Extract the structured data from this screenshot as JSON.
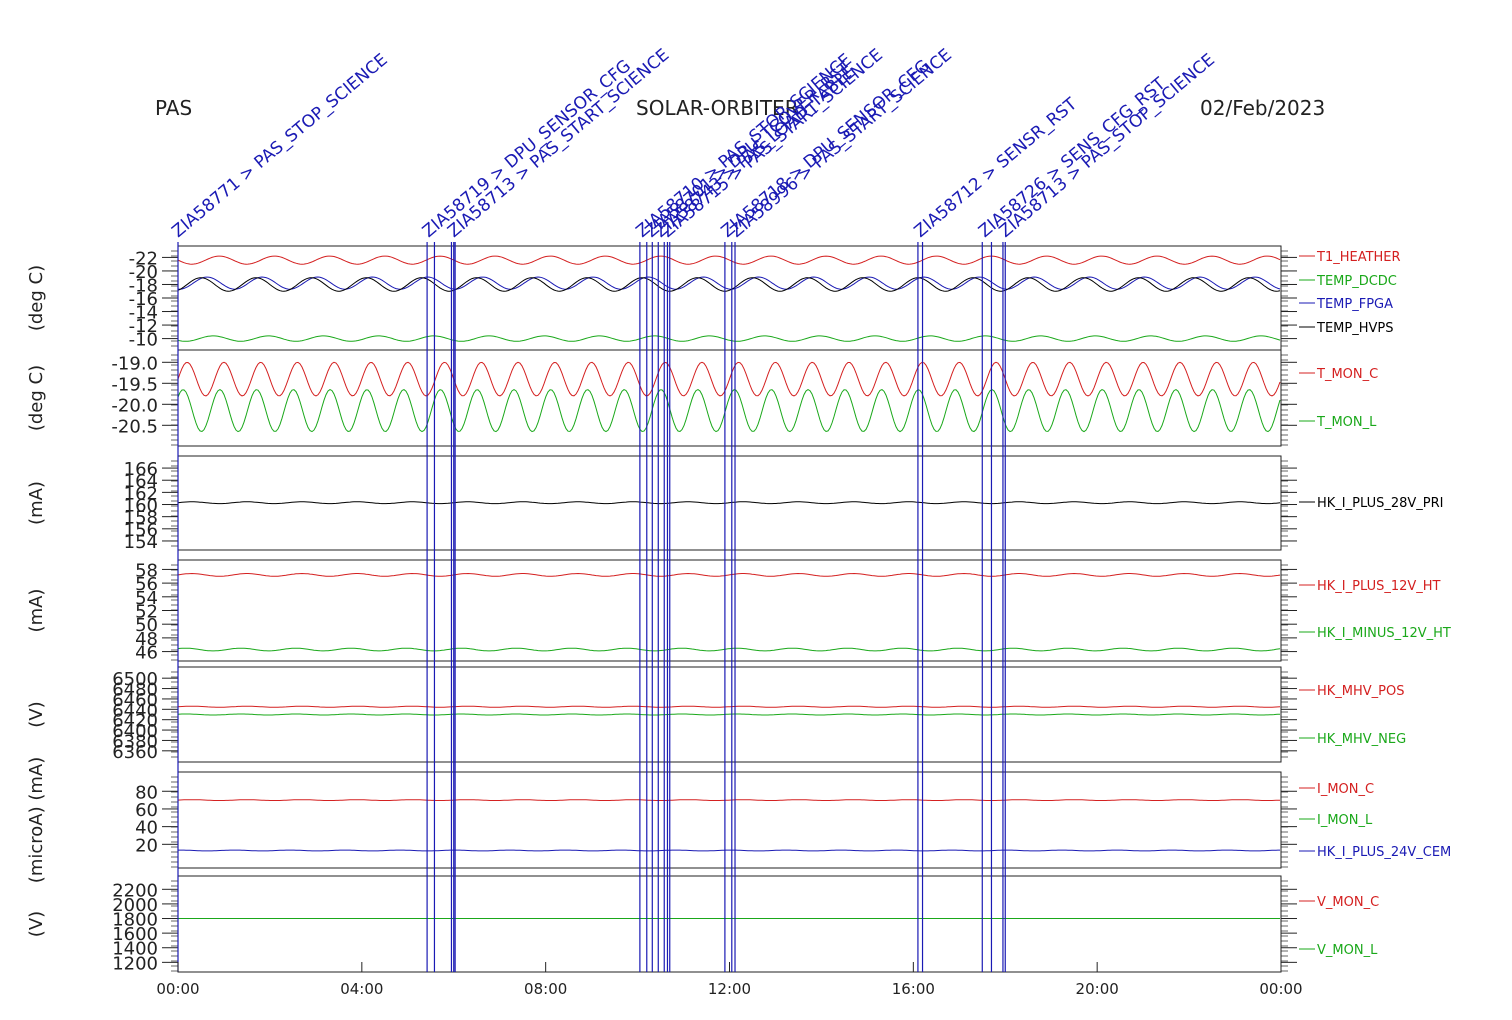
{
  "header": {
    "instrument": "PAS",
    "mission": "SOLAR-ORBITER",
    "date": "02/Feb/2023"
  },
  "colors": {
    "red": "#d42020",
    "green": "#1aa81a",
    "blue": "#1a1ab4",
    "black": "#000000",
    "frame": "#222222"
  },
  "x_tick_labels": [
    "00:00",
    "04:00",
    "08:00",
    "12:00",
    "16:00",
    "20:00",
    "00:00"
  ],
  "events": {
    "hours": [
      0.0,
      5.42,
      5.58,
      5.95,
      6.0,
      6.03,
      10.05,
      10.2,
      10.32,
      10.45,
      10.58,
      10.65,
      10.7,
      11.9,
      12.05,
      12.12,
      16.1,
      16.2,
      17.5,
      17.7,
      17.95,
      18.0
    ],
    "labels": [
      {
        "h": 0.0,
        "text": "ZIA58771 > PAS_STOP_SCIENCE"
      },
      {
        "h": 5.45,
        "text": "ZIA58719 > DPU_SENSOR_CFG"
      },
      {
        "h": 6.0,
        "text": "ZIA58713 > PAS_START_SCIENCE"
      },
      {
        "h": 10.1,
        "text": "ZIA58710 > PAS_STOP_SCIENCE"
      },
      {
        "h": 10.3,
        "text": "ZIA58701 > DPU_TCOVER_RST"
      },
      {
        "h": 10.5,
        "text": "ZIA58743 > PAS_LOAD_TABLE"
      },
      {
        "h": 10.65,
        "text": "ZIA58715 > PAS_START_SCIENCE"
      },
      {
        "h": 11.95,
        "text": "ZIA58718 > DPU_SENSOR_CFG"
      },
      {
        "h": 12.15,
        "text": "ZIA58996 > PAS_START_SCIENCE"
      },
      {
        "h": 16.15,
        "text": "ZIA58712 > SENSR_RST"
      },
      {
        "h": 17.55,
        "text": "ZIA58726 > SENS_CFG_RST"
      },
      {
        "h": 18.0,
        "text": "ZIA58713 > PAS_STOP_SCIENCE"
      }
    ]
  },
  "chart_data": [
    {
      "type": "line",
      "ylabel": "(deg C)",
      "ylim": [
        -22.8,
        -9.2
      ],
      "invert": true,
      "yticks": [
        -10,
        -12,
        -14,
        -16,
        -18,
        -20,
        -22
      ],
      "ytick_labels": [
        "-10",
        "-12",
        "-14",
        "-16",
        "-18",
        "-20",
        "-22"
      ],
      "series": [
        {
          "name": "T1_HEATHER",
          "color": "#d42020",
          "base": -21.6,
          "amp": 0.6
        },
        {
          "name": "TEMP_DCDC",
          "color": "#1aa81a",
          "base": -10.0,
          "amp": 0.4
        },
        {
          "name": "TEMP_FPGA",
          "color": "#1a1ab4",
          "base": -18.2,
          "amp": 0.9
        },
        {
          "name": "TEMP_HVPS",
          "color": "#000000",
          "base": -18.0,
          "amp": 1.0
        }
      ]
    },
    {
      "type": "line",
      "ylabel": "(deg C)",
      "ylim": [
        -20.85,
        -18.85
      ],
      "invert": false,
      "yticks": [
        -19.0,
        -19.5,
        -20.0,
        -20.5
      ],
      "ytick_labels": [
        "-19.0",
        "-19.5",
        "-20.0",
        "-20.5"
      ],
      "series": [
        {
          "name": "T_MON_C",
          "color": "#d42020",
          "base": -19.4,
          "amp": 0.4
        },
        {
          "name": "T_MON_L",
          "color": "#1aa81a",
          "base": -20.15,
          "amp": 0.5
        }
      ]
    },
    {
      "type": "line",
      "ylabel": "(mA)",
      "ylim": [
        153.5,
        167
      ],
      "invert": false,
      "yticks": [
        166,
        164,
        162,
        160,
        158,
        156,
        154
      ],
      "ytick_labels": [
        "166",
        "164",
        "162",
        "160",
        "158",
        "156",
        "154"
      ],
      "series": [
        {
          "name": "HK_I_PLUS_28V_PRI",
          "color": "#000000",
          "base": 160.3,
          "amp": 0.15
        }
      ]
    },
    {
      "type": "line",
      "ylabel": "(mA)",
      "ylim": [
        45.5,
        58.5
      ],
      "invert": false,
      "yticks": [
        58,
        56,
        54,
        52,
        50,
        48,
        46
      ],
      "ytick_labels": [
        "58",
        "56",
        "54",
        "52",
        "50",
        "48",
        "46"
      ],
      "series": [
        {
          "name": "HK_I_PLUS_12V_HT",
          "color": "#d42020",
          "base": 57.2,
          "amp": 0.2
        },
        {
          "name": "HK_I_MINUS_12V_HT",
          "color": "#1aa81a",
          "base": 46.3,
          "amp": 0.2
        }
      ]
    },
    {
      "type": "line",
      "ylabel": "(V)",
      "ylim": [
        6350,
        6510
      ],
      "invert": false,
      "yticks": [
        6500,
        6480,
        6460,
        6440,
        6420,
        6400,
        6380,
        6360
      ],
      "ytick_labels": [
        "6500",
        "6480",
        "6460",
        "6440",
        "6420",
        "6400",
        "6380",
        "6360"
      ],
      "series": [
        {
          "name": "HK_MHV_POS",
          "color": "#d42020",
          "base": 6445,
          "amp": 1
        },
        {
          "name": "HK_MHV_NEG",
          "color": "#1aa81a",
          "base": 6430,
          "amp": 1
        }
      ]
    },
    {
      "type": "line",
      "ylabel": "(microA) (mA)",
      "ylim": [
        0,
        95
      ],
      "invert": false,
      "yticks": [
        80,
        60,
        40,
        20
      ],
      "ytick_labels": [
        "80",
        "60",
        "40",
        "20"
      ],
      "series": [
        {
          "name": "I_MON_C",
          "color": "#d42020",
          "base": 70,
          "amp": 0.5
        },
        {
          "name": "I_MON_L",
          "color": "#1aa81a",
          "base": 0,
          "amp": 0
        },
        {
          "name": "HK_I_PLUS_24V_CEM",
          "color": "#1a1ab4",
          "base": 13,
          "amp": 0.5
        }
      ]
    },
    {
      "type": "line",
      "ylabel": "(V)",
      "ylim": [
        1150,
        2300
      ],
      "invert": false,
      "yticks": [
        2200,
        2000,
        1800,
        1600,
        1400,
        1200
      ],
      "ytick_labels": [
        "2200",
        "2000",
        "1800",
        "1600",
        "1400",
        "1200"
      ],
      "series": [
        {
          "name": "V_MON_C",
          "color": "#d42020",
          "base": 1800,
          "amp": 0
        },
        {
          "name": "V_MON_L",
          "color": "#1aa81a",
          "base": 1800,
          "amp": 0
        }
      ]
    }
  ]
}
